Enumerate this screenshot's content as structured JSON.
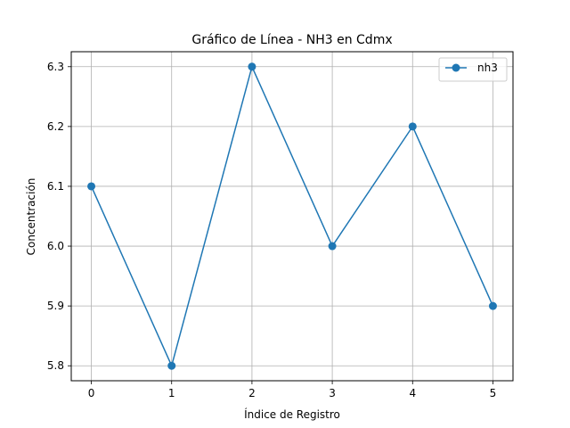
{
  "chart_data": {
    "type": "line",
    "title": "Gráfico de Línea - NH3 en Cdmx",
    "xlabel": "Índice de Registro",
    "ylabel": "Concentración",
    "x": [
      0,
      1,
      2,
      3,
      4,
      5
    ],
    "series": [
      {
        "name": "nh3",
        "values": [
          6.1,
          5.8,
          6.3,
          6.0,
          6.2,
          5.9
        ],
        "color": "#1f77b4",
        "marker": "circle"
      }
    ],
    "xlim": [
      -0.25,
      5.25
    ],
    "ylim": [
      5.775,
      6.325
    ],
    "xticks": [
      0,
      1,
      2,
      3,
      4,
      5
    ],
    "xtick_labels": [
      "0",
      "1",
      "2",
      "3",
      "4",
      "5"
    ],
    "yticks": [
      5.8,
      5.9,
      6.0,
      6.1,
      6.2,
      6.3
    ],
    "ytick_labels": [
      "5.8",
      "5.9",
      "6.0",
      "6.1",
      "6.2",
      "6.3"
    ],
    "grid": true,
    "legend_position": "top-right"
  }
}
